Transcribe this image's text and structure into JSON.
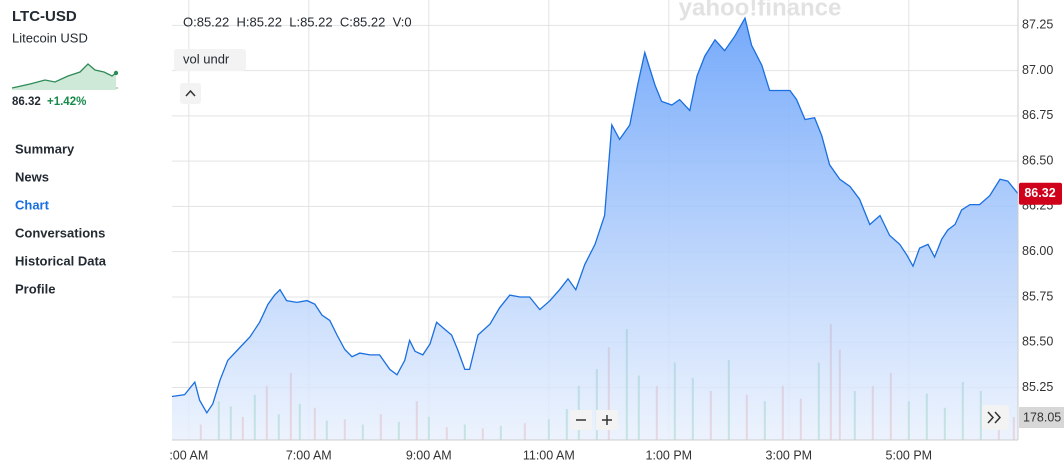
{
  "sidebar": {
    "symbol": "LTC-USD",
    "name": "Litecoin USD",
    "price": "86.32",
    "change": "+1.42%",
    "nav": [
      "Summary",
      "News",
      "Chart",
      "Conversations",
      "Historical Data",
      "Profile"
    ],
    "active_nav": 2
  },
  "toolbar": {
    "ohlc": "O:85.22  H:85.22  L:85.22  C:85.22  V:0",
    "indicator": "vol undr",
    "watermark": "yahoo!finance"
  },
  "chart_data": {
    "type": "area",
    "x": [
      4.72,
      4.93,
      5.1,
      5.18,
      5.3,
      5.4,
      5.52,
      5.65,
      5.82,
      6.02,
      6.18,
      6.32,
      6.43,
      6.52,
      6.63,
      6.8,
      6.97,
      7.1,
      7.22,
      7.35,
      7.47,
      7.6,
      7.72,
      7.85,
      8.02,
      8.18,
      8.35,
      8.47,
      8.6,
      8.68,
      8.77,
      8.9,
      9.02,
      9.13,
      9.27,
      9.38,
      9.48,
      9.6,
      9.68,
      9.82,
      10.02,
      10.18,
      10.35,
      10.52,
      10.68,
      10.85,
      11.02,
      11.18,
      11.32,
      11.45,
      11.6,
      11.77,
      11.93,
      12.05,
      12.18,
      12.35,
      12.48,
      12.6,
      12.77,
      12.88,
      13.05,
      13.18,
      13.35,
      13.47,
      13.6,
      13.77,
      13.93,
      14.1,
      14.27,
      14.38,
      14.55,
      14.68,
      14.85,
      15.02,
      15.13,
      15.27,
      15.43,
      15.55,
      15.68,
      15.85,
      16.02,
      16.18,
      16.35,
      16.52,
      16.68,
      16.85,
      16.97,
      17.07,
      17.18,
      17.32,
      17.43,
      17.55,
      17.65,
      17.77,
      17.88,
      18.02,
      18.18,
      18.35,
      18.52,
      18.65,
      18.82
    ],
    "series": [
      {
        "color": "#1a6fe0",
        "values": [
          85.2,
          85.21,
          85.28,
          85.18,
          85.11,
          85.16,
          85.29,
          85.4,
          85.46,
          85.53,
          85.61,
          85.71,
          85.76,
          85.79,
          85.73,
          85.72,
          85.73,
          85.71,
          85.65,
          85.62,
          85.54,
          85.46,
          85.42,
          85.44,
          85.43,
          85.43,
          85.35,
          85.32,
          85.4,
          85.51,
          85.45,
          85.43,
          85.49,
          85.61,
          85.57,
          85.54,
          85.46,
          85.35,
          85.35,
          85.54,
          85.6,
          85.69,
          85.76,
          85.75,
          85.75,
          85.68,
          85.73,
          85.79,
          85.85,
          85.79,
          85.93,
          86.04,
          86.2,
          86.7,
          86.62,
          86.7,
          86.92,
          87.1,
          86.92,
          86.83,
          86.81,
          86.84,
          86.78,
          86.97,
          87.08,
          87.17,
          87.11,
          87.19,
          87.29,
          87.14,
          87.03,
          86.89,
          86.89,
          86.89,
          86.84,
          86.73,
          86.74,
          86.64,
          86.48,
          86.4,
          86.36,
          86.29,
          86.15,
          86.2,
          86.09,
          86.04,
          85.98,
          85.92,
          86.02,
          86.04,
          85.97,
          86.07,
          86.12,
          86.15,
          86.23,
          86.26,
          86.26,
          86.31,
          86.4,
          86.39,
          86.32
        ]
      }
    ],
    "xlim": [
      4.72,
      18.82
    ],
    "xticks": [
      {
        "value": 5,
        "label": ":00 AM"
      },
      {
        "value": 7,
        "label": "7:00 AM"
      },
      {
        "value": 9,
        "label": "9:00 AM"
      },
      {
        "value": 11,
        "label": "11:00 AM"
      },
      {
        "value": 13,
        "label": "1:00 PM"
      },
      {
        "value": 15,
        "label": "3:00 PM"
      },
      {
        "value": 17,
        "label": "5:00 PM"
      }
    ],
    "ylim": [
      84.96,
      87.39
    ],
    "yticks": [
      85.25,
      {
        "value": 85.5,
        "label": "85.50"
      },
      85.75,
      {
        "value": 86,
        "label": "86.00"
      },
      86.25,
      {
        "value": 86.5,
        "label": "86.50"
      },
      86.75,
      {
        "value": 87,
        "label": "87.00"
      },
      87.25
    ],
    "grid": true,
    "volume": {
      "ylim": [
        0,
        1900
      ],
      "x": [
        5.2,
        5.5,
        5.7,
        5.9,
        6.1,
        6.3,
        6.5,
        6.7,
        6.85,
        7.1,
        7.3,
        7.6,
        7.9,
        8.2,
        8.5,
        8.8,
        9.0,
        9.3,
        9.6,
        9.9,
        10.2,
        10.6,
        11.0,
        11.3,
        11.5,
        11.8,
        12.0,
        12.3,
        12.5,
        12.8,
        13.1,
        13.4,
        13.7,
        14.0,
        14.3,
        14.6,
        14.9,
        15.2,
        15.5,
        15.7,
        15.85,
        16.1,
        16.4,
        16.7,
        17.0,
        17.3,
        17.6,
        17.9,
        18.2,
        18.5,
        18.75
      ],
      "values": [
        120,
        300,
        260,
        180,
        350,
        420,
        200,
        520,
        280,
        250,
        150,
        160,
        120,
        200,
        140,
        300,
        180,
        100,
        120,
        90,
        110,
        130,
        160,
        240,
        420,
        550,
        720,
        860,
        500,
        420,
        600,
        480,
        380,
        620,
        350,
        300,
        420,
        320,
        600,
        900,
        700,
        380,
        420,
        520,
        300,
        360,
        250,
        450,
        380,
        200,
        178.05
      ],
      "colors": [
        "#e57368",
        "#3cb371",
        "#3cb371",
        "#e57368",
        "#3cb371",
        "#e57368",
        "#3cb371",
        "#e57368",
        "#3cb371",
        "#e57368",
        "#3cb371",
        "#e57368",
        "#3cb371",
        "#e57368",
        "#3cb371",
        "#e57368",
        "#3cb371",
        "#e57368",
        "#3cb371",
        "#e57368",
        "#3cb371",
        "#e57368",
        "#3cb371",
        "#3cb371",
        "#3cb371",
        "#3cb371",
        "#e57368",
        "#3cb371",
        "#3cb371",
        "#e57368",
        "#3cb371",
        "#3cb371",
        "#e57368",
        "#3cb371",
        "#e57368",
        "#3cb371",
        "#e57368",
        "#e57368",
        "#3cb371",
        "#e57368",
        "#e57368",
        "#3cb371",
        "#e57368",
        "#e57368",
        "#3cb371",
        "#3cb371",
        "#3cb371",
        "#3cb371",
        "#3cb371",
        "#e57368",
        "#e57368"
      ]
    }
  }
}
